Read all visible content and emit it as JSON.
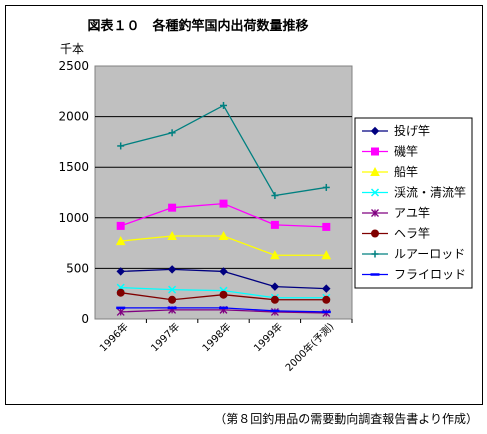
{
  "chart_data": {
    "type": "line",
    "title": "図表１０　各種釣竿国内出荷数量推移",
    "ylabel": "千本",
    "ylim": [
      0,
      2500
    ],
    "yticks": [
      0,
      500,
      1000,
      1500,
      2000,
      2500
    ],
    "categories": [
      "1996年",
      "1997年",
      "1998年",
      "1999年",
      "2000年(予測)"
    ],
    "grid": true,
    "legend_position": "right",
    "series": [
      {
        "name": "投げ竿",
        "color": "#000080",
        "marker": "diamond",
        "values": [
          470,
          490,
          470,
          320,
          300
        ]
      },
      {
        "name": "磯竿",
        "color": "#ff00ff",
        "marker": "square",
        "values": [
          920,
          1100,
          1140,
          930,
          910
        ]
      },
      {
        "name": "船竿",
        "color": "#ffff00",
        "marker": "triangle",
        "values": [
          770,
          820,
          820,
          630,
          630
        ]
      },
      {
        "name": "渓流・清流竿",
        "color": "#00ffff",
        "marker": "x",
        "values": [
          310,
          290,
          280,
          210,
          210
        ]
      },
      {
        "name": "アユ竿",
        "color": "#800080",
        "marker": "star",
        "values": [
          70,
          90,
          90,
          70,
          60
        ]
      },
      {
        "name": "ヘラ竿",
        "color": "#800000",
        "marker": "circle",
        "values": [
          260,
          190,
          240,
          190,
          190
        ]
      },
      {
        "name": "ルアーロッド",
        "color": "#008080",
        "marker": "plus",
        "values": [
          1710,
          1840,
          2110,
          1220,
          1300
        ]
      },
      {
        "name": "フライロッド",
        "color": "#0000ff",
        "marker": "dash",
        "values": [
          110,
          110,
          110,
          80,
          70
        ]
      }
    ]
  },
  "source_note": "（第８回釣用品の需要動向調査報告書より作成）"
}
